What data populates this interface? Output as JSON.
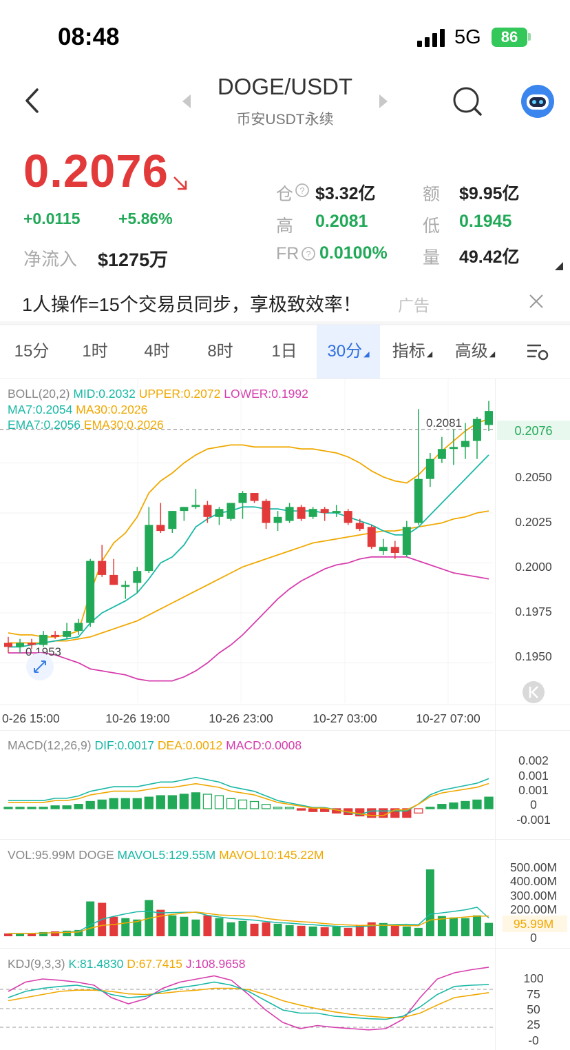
{
  "status_bar": {
    "time": "08:48",
    "network": "5G",
    "battery": "86"
  },
  "header": {
    "pair": "DOGE/USDT",
    "subtitle": "币安USDT永续"
  },
  "ticker": {
    "price": "0.2076",
    "change_abs": "+0.0115",
    "change_pct": "+5.86%",
    "net_inflow_label": "净流入",
    "net_inflow_value": "$1275万",
    "oi_label": "仓",
    "oi_value": "$3.32亿",
    "turnover_label": "额",
    "turnover_value": "$9.95亿",
    "high_label": "高",
    "high_value": "0.2081",
    "low_label": "低",
    "low_value": "0.1945",
    "fr_label": "FR",
    "fr_value": "0.0100%",
    "volume_label": "量",
    "volume_value": "49.42亿"
  },
  "ad": {
    "text": "1人操作=15个交易员同步，享极致效率！",
    "tag": "广告"
  },
  "tabs": [
    "15分",
    "1时",
    "4时",
    "8时",
    "1日",
    "30分",
    "指标",
    "高级"
  ],
  "active_tab": 5,
  "main_chart": {
    "boll_legend": "BOLL(20,2)",
    "mid": "MID:0.2032",
    "upper": "UPPER:0.2072",
    "lower": "LOWER:0.1992",
    "ma7": "MA7:0.2054",
    "ma30": "MA30:0.2026",
    "ema7": "EMA7:0.2056",
    "ema30": "EMA30:0.2026",
    "y_ticks": [
      "0.2050",
      "0.2025",
      "0.2000",
      "0.1975",
      "0.1950"
    ],
    "current_price_tag": "0.2076",
    "high_marker": "0.2081",
    "low_marker": "0.1953",
    "x_ticks": [
      "0-26 15:00",
      "10-26 19:00",
      "10-26 23:00",
      "10-27 03:00",
      "10-27 07:00"
    ]
  },
  "macd": {
    "legend": "MACD(12,26,9)",
    "dif": "DIF:0.0017",
    "dea": "DEA:0.0012",
    "macd": "MACD:0.0008",
    "y_ticks": [
      "0.002",
      "0.001",
      "0.001",
      "0",
      "-0.001"
    ]
  },
  "vol": {
    "legend": "VOL:95.99M DOGE",
    "mavol5": "MAVOL5:129.55M",
    "mavol10": "MAVOL10:145.22M",
    "y_ticks": [
      "500.00M",
      "400.00M",
      "300.00M",
      "200.00M",
      "0"
    ],
    "current_tag": "95.99M"
  },
  "kdj": {
    "legend": "KDJ(9,3,3)",
    "k": "K:81.4830",
    "d": "D:67.7415",
    "j": "J:108.9658",
    "y_ticks": [
      "100",
      "75",
      "50",
      "25",
      "-0"
    ]
  },
  "chart_data": {
    "type": "candlestick",
    "x_ticks": [
      "0-26 15:00",
      "10-26 19:00",
      "10-26 23:00",
      "10-27 03:00",
      "10-27 07:00"
    ],
    "ylim": [
      0.1935,
      0.2085
    ],
    "candles": [
      {
        "o": 0.196,
        "h": 0.1963,
        "l": 0.1955,
        "c": 0.1958
      },
      {
        "o": 0.1958,
        "h": 0.1962,
        "l": 0.1955,
        "c": 0.196
      },
      {
        "o": 0.196,
        "h": 0.1962,
        "l": 0.1957,
        "c": 0.1959
      },
      {
        "o": 0.1959,
        "h": 0.1966,
        "l": 0.1958,
        "c": 0.1964
      },
      {
        "o": 0.1964,
        "h": 0.1966,
        "l": 0.1962,
        "c": 0.1963
      },
      {
        "o": 0.1963,
        "h": 0.197,
        "l": 0.1962,
        "c": 0.1966
      },
      {
        "o": 0.1966,
        "h": 0.1972,
        "l": 0.1964,
        "c": 0.197
      },
      {
        "o": 0.197,
        "h": 0.2002,
        "l": 0.1968,
        "c": 0.2001
      },
      {
        "o": 0.2001,
        "h": 0.2009,
        "l": 0.1993,
        "c": 0.1994
      },
      {
        "o": 0.1994,
        "h": 0.2002,
        "l": 0.1989,
        "c": 0.1989
      },
      {
        "o": 0.1988,
        "h": 0.1991,
        "l": 0.1982,
        "c": 0.1989
      },
      {
        "o": 0.199,
        "h": 0.1998,
        "l": 0.1985,
        "c": 0.1996
      },
      {
        "o": 0.1996,
        "h": 0.2028,
        "l": 0.1995,
        "c": 0.2019
      },
      {
        "o": 0.2019,
        "h": 0.203,
        "l": 0.2015,
        "c": 0.2016
      },
      {
        "o": 0.2017,
        "h": 0.2026,
        "l": 0.2015,
        "c": 0.2026
      },
      {
        "o": 0.2026,
        "h": 0.2028,
        "l": 0.2021,
        "c": 0.2028
      },
      {
        "o": 0.2028,
        "h": 0.2037,
        "l": 0.2027,
        "c": 0.2029
      },
      {
        "o": 0.2029,
        "h": 0.2031,
        "l": 0.202,
        "c": 0.2023
      },
      {
        "o": 0.2023,
        "h": 0.2028,
        "l": 0.2019,
        "c": 0.2027
      },
      {
        "o": 0.2022,
        "h": 0.2029,
        "l": 0.2021,
        "c": 0.203
      },
      {
        "o": 0.203,
        "h": 0.2036,
        "l": 0.2022,
        "c": 0.2035
      },
      {
        "o": 0.2035,
        "h": 0.2035,
        "l": 0.203,
        "c": 0.2031
      },
      {
        "o": 0.2031,
        "h": 0.2032,
        "l": 0.2017,
        "c": 0.202
      },
      {
        "o": 0.202,
        "h": 0.2026,
        "l": 0.2016,
        "c": 0.2023
      },
      {
        "o": 0.2021,
        "h": 0.203,
        "l": 0.202,
        "c": 0.2028
      },
      {
        "o": 0.2028,
        "h": 0.2029,
        "l": 0.2021,
        "c": 0.2022
      },
      {
        "o": 0.2023,
        "h": 0.2028,
        "l": 0.2022,
        "c": 0.2027
      },
      {
        "o": 0.2027,
        "h": 0.2028,
        "l": 0.2021,
        "c": 0.2025
      },
      {
        "o": 0.2025,
        "h": 0.2029,
        "l": 0.2023,
        "c": 0.2026
      },
      {
        "o": 0.2026,
        "h": 0.2027,
        "l": 0.2019,
        "c": 0.202
      },
      {
        "o": 0.202,
        "h": 0.2022,
        "l": 0.2016,
        "c": 0.2017
      },
      {
        "o": 0.2018,
        "h": 0.2019,
        "l": 0.2007,
        "c": 0.2008
      },
      {
        "o": 0.2006,
        "h": 0.2012,
        "l": 0.2004,
        "c": 0.2008
      },
      {
        "o": 0.2008,
        "h": 0.2011,
        "l": 0.2002,
        "c": 0.2005
      },
      {
        "o": 0.2004,
        "h": 0.2021,
        "l": 0.2003,
        "c": 0.2018
      },
      {
        "o": 0.202,
        "h": 0.2077,
        "l": 0.2019,
        "c": 0.2042
      },
      {
        "o": 0.2042,
        "h": 0.2055,
        "l": 0.2038,
        "c": 0.2052
      },
      {
        "o": 0.2052,
        "h": 0.2063,
        "l": 0.205,
        "c": 0.2057
      },
      {
        "o": 0.2057,
        "h": 0.2067,
        "l": 0.2049,
        "c": 0.2058
      },
      {
        "o": 0.2058,
        "h": 0.207,
        "l": 0.2052,
        "c": 0.2061
      },
      {
        "o": 0.2061,
        "h": 0.2073,
        "l": 0.2052,
        "c": 0.2072
      },
      {
        "o": 0.2069,
        "h": 0.2081,
        "l": 0.2066,
        "c": 0.2076
      }
    ],
    "boll_upper": [
      0.1965,
      0.1964,
      0.1964,
      0.1963,
      0.1963,
      0.1964,
      0.1966,
      0.1985,
      0.2001,
      0.201,
      0.2015,
      0.2023,
      0.2035,
      0.2041,
      0.2045,
      0.205,
      0.2054,
      0.2057,
      0.2058,
      0.2059,
      0.2059,
      0.2058,
      0.2058,
      0.2058,
      0.2058,
      0.2057,
      0.2057,
      0.2056,
      0.2055,
      0.2053,
      0.205,
      0.2046,
      0.2043,
      0.2041,
      0.204,
      0.2044,
      0.205,
      0.2056,
      0.2061,
      0.2066,
      0.207,
      0.2072
    ],
    "boll_lower": [
      0.1955,
      0.1955,
      0.1955,
      0.1955,
      0.1954,
      0.1952,
      0.195,
      0.1947,
      0.1946,
      0.1945,
      0.1944,
      0.1942,
      0.1941,
      0.1941,
      0.1941,
      0.1943,
      0.1946,
      0.195,
      0.1955,
      0.1959,
      0.1964,
      0.197,
      0.1976,
      0.1982,
      0.1987,
      0.1991,
      0.1994,
      0.1997,
      0.1999,
      0.2,
      0.2002,
      0.2003,
      0.2003,
      0.2003,
      0.2003,
      0.2001,
      0.1999,
      0.1997,
      0.1995,
      0.1994,
      0.1993,
      0.1992
    ],
    "ma7": [
      0.1958,
      0.1958,
      0.1959,
      0.196,
      0.1961,
      0.1962,
      0.1963,
      0.197,
      0.1975,
      0.1978,
      0.1981,
      0.1985,
      0.1992,
      0.2,
      0.2003,
      0.2009,
      0.2018,
      0.2022,
      0.2025,
      0.2026,
      0.2028,
      0.2028,
      0.2027,
      0.2027,
      0.2026,
      0.2026,
      0.2026,
      0.2025,
      0.2025,
      0.2023,
      0.2021,
      0.2019,
      0.2016,
      0.2014,
      0.2014,
      0.2018,
      0.2024,
      0.203,
      0.2036,
      0.2042,
      0.2048,
      0.2054
    ],
    "ma30": [
      0.196,
      0.196,
      0.196,
      0.196,
      0.1961,
      0.1961,
      0.1962,
      0.1963,
      0.1965,
      0.1967,
      0.1969,
      0.1971,
      0.1974,
      0.1977,
      0.198,
      0.1983,
      0.1986,
      0.1989,
      0.1992,
      0.1995,
      0.1998,
      0.2,
      0.2002,
      0.2004,
      0.2006,
      0.2008,
      0.201,
      0.2011,
      0.2012,
      0.2013,
      0.2014,
      0.2015,
      0.2016,
      0.2016,
      0.2017,
      0.2018,
      0.2019,
      0.202,
      0.2022,
      0.2023,
      0.2025,
      0.2026
    ],
    "macd_hist": [
      0.0001,
      0.0001,
      0.0001,
      0.0001,
      0.0002,
      0.0002,
      0.0003,
      0.0005,
      0.0006,
      0.0007,
      0.0007,
      0.0007,
      0.0008,
      0.0009,
      0.0009,
      0.001,
      0.0011,
      0.001,
      0.0009,
      0.0007,
      0.0006,
      0.0005,
      0.0003,
      0.0001,
      0,
      -0.0001,
      -0.0002,
      -0.0002,
      -0.0003,
      -0.0004,
      -0.0005,
      -0.0006,
      -0.0006,
      -0.0006,
      -0.0006,
      -0.0003,
      0.0001,
      0.0003,
      0.0004,
      0.0005,
      0.0006,
      0.0008
    ],
    "volume_m": [
      20,
      20,
      22,
      30,
      35,
      40,
      45,
      250,
      240,
      140,
      130,
      120,
      260,
      190,
      150,
      140,
      120,
      150,
      130,
      100,
      110,
      90,
      100,
      90,
      80,
      75,
      70,
      65,
      70,
      60,
      80,
      100,
      95,
      85,
      70,
      60,
      480,
      145,
      135,
      130,
      150,
      95.99
    ],
    "kdj_k": [
      60,
      70,
      75,
      78,
      80,
      75,
      65,
      60,
      62,
      70,
      76,
      80,
      85,
      80,
      70,
      55,
      40,
      35,
      35,
      30,
      28,
      26,
      25,
      30,
      45,
      65,
      78,
      80,
      81
    ],
    "kdj_d": [
      55,
      60,
      65,
      70,
      72,
      72,
      70,
      66,
      65,
      67,
      70,
      72,
      75,
      75,
      73,
      65,
      55,
      48,
      42,
      37,
      33,
      30,
      28,
      28,
      35,
      48,
      60,
      64,
      68
    ],
    "kdj_j": [
      70,
      85,
      90,
      88,
      85,
      80,
      60,
      50,
      58,
      75,
      85,
      90,
      95,
      88,
      65,
      40,
      20,
      10,
      15,
      12,
      10,
      8,
      10,
      25,
      60,
      90,
      100,
      105,
      109
    ]
  }
}
